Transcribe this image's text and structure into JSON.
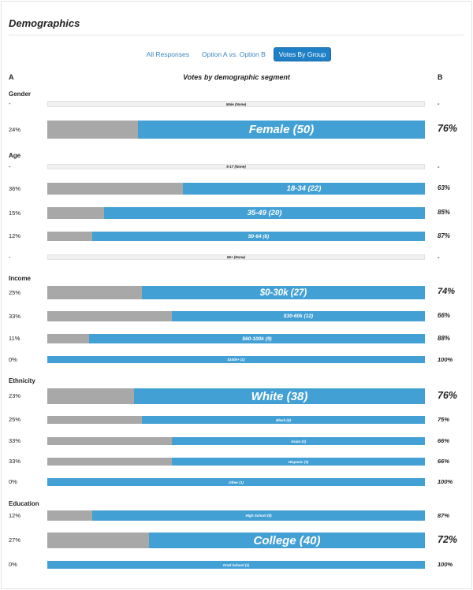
{
  "header": {
    "title": "Demographics"
  },
  "tabs": [
    {
      "label": "All Responses",
      "active": false
    },
    {
      "label": "Option A vs. Option B",
      "active": false
    },
    {
      "label": "Votes By Group",
      "active": true
    }
  ],
  "columns": {
    "a": "A",
    "center": "Votes by demographic segment",
    "b": "B"
  },
  "colors": {
    "option_a": "#a8a8a8",
    "option_b": "#43a0d5",
    "empty": "#f1f1f1"
  },
  "chart_data": {
    "type": "bar",
    "orientation": "horizontal",
    "stacked": true,
    "title": "Votes by demographic segment",
    "series_names": [
      "A",
      "B"
    ],
    "groups": [
      {
        "name": "Gender",
        "rows": [
          {
            "label": "Male (None)",
            "a": "-",
            "b": "-",
            "a_share": null,
            "size": "xs"
          },
          {
            "label": "Female (50)",
            "a": "24%",
            "b": "76%",
            "a_share": 0.24,
            "size": "xl"
          }
        ]
      },
      {
        "name": "Age",
        "rows": [
          {
            "label": "5-17 (None)",
            "a": "-",
            "b": "-",
            "a_share": null,
            "size": "xs"
          },
          {
            "label": "18-34 (22)",
            "a": "36%",
            "b": "63%",
            "a_share": 0.36,
            "size": "m"
          },
          {
            "label": "35-49 (20)",
            "a": "15%",
            "b": "85%",
            "a_share": 0.15,
            "size": "m"
          },
          {
            "label": "50-64 (8)",
            "a": "12%",
            "b": "87%",
            "a_share": 0.12,
            "size": "s"
          },
          {
            "label": "65+ (None)",
            "a": "-",
            "b": "-",
            "a_share": null,
            "size": "xs"
          }
        ]
      },
      {
        "name": "Income",
        "rows": [
          {
            "label": "$0-30k (27)",
            "a": "25%",
            "b": "74%",
            "a_share": 0.25,
            "size": "l"
          },
          {
            "label": "$30-60k (12)",
            "a": "33%",
            "b": "66%",
            "a_share": 0.33,
            "size": "s"
          },
          {
            "label": "$60-100k (9)",
            "a": "11%",
            "b": "88%",
            "a_share": 0.11,
            "size": "s"
          },
          {
            "label": "$100k+ (1)",
            "a": "0%",
            "b": "100%",
            "a_share": 0,
            "size": "xs"
          }
        ]
      },
      {
        "name": "Ethnicity",
        "rows": [
          {
            "label": "White (38)",
            "a": "23%",
            "b": "76%",
            "a_share": 0.23,
            "size": "xl"
          },
          {
            "label": "Black (4)",
            "a": "25%",
            "b": "75%",
            "a_share": 0.25,
            "size": "xs"
          },
          {
            "label": "Asian (3)",
            "a": "33%",
            "b": "66%",
            "a_share": 0.33,
            "size": "xs"
          },
          {
            "label": "Hispanic (3)",
            "a": "33%",
            "b": "66%",
            "a_share": 0.33,
            "size": "xs"
          },
          {
            "label": "Other (1)",
            "a": "0%",
            "b": "100%",
            "a_share": 0,
            "size": "xs"
          }
        ]
      },
      {
        "name": "Education",
        "rows": [
          {
            "label": "High School (8)",
            "a": "12%",
            "b": "87%",
            "a_share": 0.12,
            "size": "xs"
          },
          {
            "label": "College (40)",
            "a": "27%",
            "b": "72%",
            "a_share": 0.27,
            "size": "xl"
          },
          {
            "label": "Grad School (1)",
            "a": "0%",
            "b": "100%",
            "a_share": 0,
            "size": "xs"
          }
        ]
      }
    ]
  }
}
